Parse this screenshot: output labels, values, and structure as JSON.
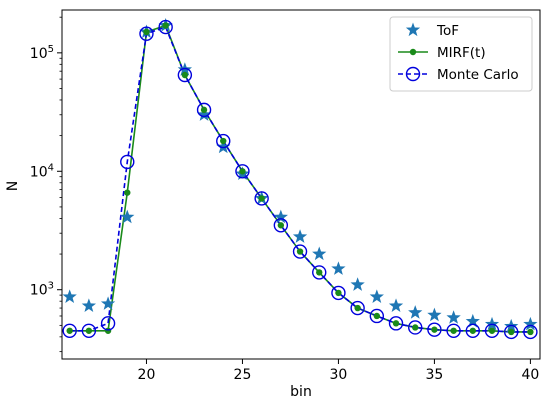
{
  "chart_data": {
    "type": "line",
    "title": "",
    "xlabel": "bin",
    "ylabel": "N",
    "yscale": "log",
    "xlim": [
      15.6,
      40.5
    ],
    "ylim": [
      260,
      230000
    ],
    "x_ticks": [
      20,
      25,
      30,
      35,
      40
    ],
    "y_major_ticks": [
      {
        "value": 1000,
        "base": "10",
        "exp": "3"
      },
      {
        "value": 10000,
        "base": "10",
        "exp": "4"
      },
      {
        "value": 100000,
        "base": "10",
        "exp": "5"
      }
    ],
    "grid": false,
    "legend_position": "upper right",
    "series": [
      {
        "name": "ToF",
        "color": "#1f77b4",
        "marker": "star",
        "line": "none",
        "x": [
          16,
          17,
          18,
          19,
          20,
          21,
          22,
          23,
          24,
          25,
          26,
          27,
          28,
          29,
          30,
          31,
          32,
          33,
          34,
          35,
          36,
          37,
          38,
          39,
          40
        ],
        "values": [
          870,
          730,
          760,
          4100,
          150000,
          170000,
          72000,
          30000,
          16000,
          9500,
          5900,
          4100,
          2800,
          2000,
          1500,
          1100,
          870,
          730,
          640,
          610,
          580,
          540,
          510,
          490,
          510
        ]
      },
      {
        "name": "MIRF(t)",
        "color": "#1a8a1a",
        "marker": "dot",
        "line": "solid",
        "x": [
          16,
          17,
          18,
          19,
          20,
          21,
          22,
          23,
          24,
          25,
          26,
          27,
          28,
          29,
          30,
          31,
          32,
          33,
          34,
          35,
          36,
          37,
          38,
          39,
          40
        ],
        "values": [
          450,
          450,
          450,
          6600,
          150000,
          170000,
          65000,
          33000,
          18000,
          10000,
          5900,
          3500,
          2100,
          1400,
          940,
          700,
          600,
          520,
          480,
          460,
          450,
          450,
          450,
          440,
          440
        ]
      },
      {
        "name": "Monte Carlo",
        "color": "#0000dd",
        "marker": "open-circle",
        "line": "dashed",
        "x": [
          16,
          17,
          18,
          19,
          20,
          21,
          22,
          23,
          24,
          25,
          26,
          27,
          28,
          29,
          30,
          31,
          32,
          33,
          34,
          35,
          36,
          37,
          38,
          39,
          40
        ],
        "values": [
          450,
          450,
          520,
          12000,
          145000,
          165000,
          65000,
          33000,
          18000,
          10000,
          5900,
          3500,
          2100,
          1400,
          940,
          700,
          600,
          520,
          480,
          460,
          450,
          450,
          450,
          440,
          440
        ]
      }
    ]
  }
}
